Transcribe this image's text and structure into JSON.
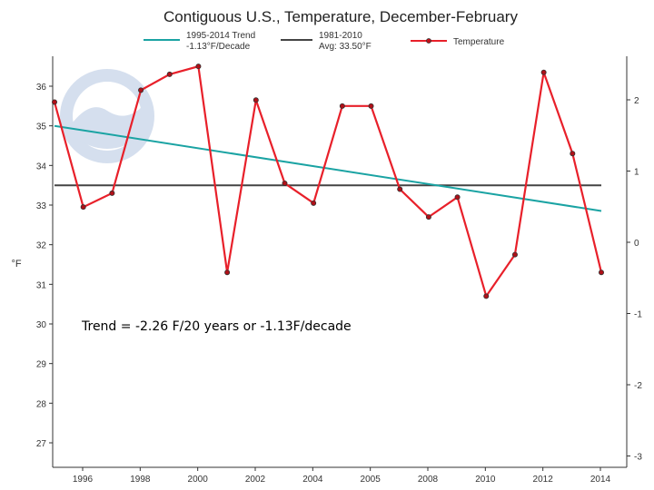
{
  "chart_data": {
    "type": "line",
    "title": "Contiguous U.S., Temperature, December-February",
    "ylabel": "°F",
    "ylim": [
      26.5,
      37
    ],
    "ylim_right": [
      -3,
      3
    ],
    "xlim": [
      1995,
      2014
    ],
    "x_ticks": [
      "1996",
      "1998",
      "2000",
      "2002",
      "2004",
      "2005",
      "2008",
      "2010",
      "2012",
      "2014"
    ],
    "y_ticks": [
      27,
      28,
      29,
      30,
      31,
      32,
      33,
      34,
      35,
      36
    ],
    "y_ticks_right": [
      "-3",
      "-2",
      "-1",
      "0",
      "1",
      "2"
    ],
    "series": [
      {
        "name": "Temperature",
        "color": "#e8202a",
        "x": [
          1995,
          1996,
          1997,
          1998,
          1999,
          2000,
          2001,
          2002,
          2003,
          2004,
          2005,
          2006,
          2007,
          2008,
          2009,
          2010,
          2011,
          2012,
          2013,
          2014
        ],
        "y": [
          35.6,
          32.95,
          33.3,
          35.9,
          36.3,
          36.5,
          31.3,
          35.65,
          33.55,
          33.05,
          35.5,
          35.5,
          33.4,
          32.7,
          33.2,
          30.7,
          31.75,
          36.35,
          34.3,
          31.3
        ]
      },
      {
        "name": "1995-2014 Trend",
        "label_line2": "-1.13°F/Decade",
        "color": "#1aa3a3",
        "x": [
          1995,
          2014
        ],
        "y": [
          35.0,
          32.85
        ]
      },
      {
        "name": "1981-2010",
        "label_line2": "Avg: 33.50°F",
        "color": "#444444",
        "x": [
          1995,
          2014
        ],
        "y": [
          33.5,
          33.5
        ]
      }
    ],
    "annotation": "Trend = -2.26 F/20 years or -1.13F/decade",
    "watermark": "NOAA"
  }
}
